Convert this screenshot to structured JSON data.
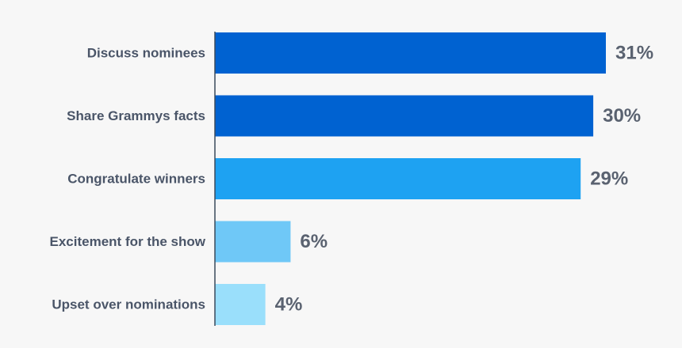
{
  "chart_data": {
    "type": "bar",
    "orientation": "horizontal",
    "categories": [
      "Discuss nominees",
      "Share Grammys facts",
      "Congratulate winners",
      "Excitement for the show",
      "Upset over nominations"
    ],
    "values": [
      31,
      30,
      29,
      6,
      4
    ],
    "value_labels": [
      "31%",
      "30%",
      "29%",
      "6%",
      "4%"
    ],
    "colors": [
      "#0062d1",
      "#0062d1",
      "#1ea2f2",
      "#6fc8f7",
      "#9adffb"
    ],
    "title": "",
    "xlabel": "",
    "ylabel": "",
    "grid": false,
    "legend": "none"
  }
}
